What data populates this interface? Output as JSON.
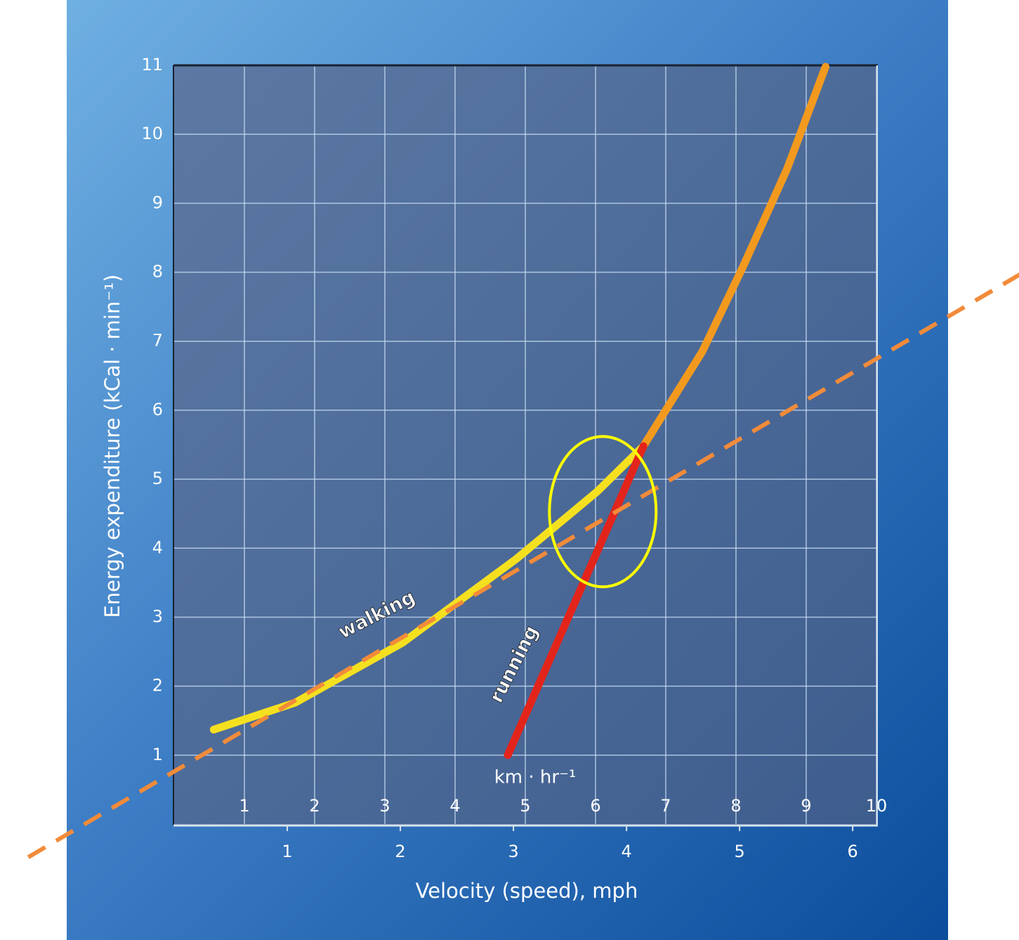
{
  "chart_data": {
    "type": "line",
    "x_label": "Velocity (speed), mph",
    "y_label": "Energy expenditure (kCal · min⁻¹)",
    "x2_label": "km · hr⁻¹",
    "xlim": [
      0,
      6.21
    ],
    "xticks": [
      1,
      2,
      3,
      4,
      5,
      6
    ],
    "x2lim": [
      0,
      10
    ],
    "x2ticks": [
      1,
      2,
      3,
      4,
      5,
      6,
      7,
      8,
      9,
      10
    ],
    "ylim": [
      0,
      11
    ],
    "yticks": [
      1,
      2,
      3,
      4,
      5,
      6,
      7,
      8,
      9,
      10,
      11
    ],
    "grid": true,
    "series": [
      {
        "name": "walking",
        "color": "#f5e020",
        "x": [
          0.35,
          1.07,
          2.02,
          3.03,
          3.74,
          4.15
        ],
        "values": [
          1.37,
          1.76,
          2.63,
          3.85,
          4.82,
          5.48
        ]
      },
      {
        "name": "running",
        "color": "#e3241b",
        "x": [
          2.95,
          4.15
        ],
        "values": [
          1.0,
          5.48
        ]
      },
      {
        "color": "#f39a1e",
        "x": [
          4.15,
          4.67,
          5.03,
          5.42,
          5.76
        ],
        "values": [
          5.48,
          6.85,
          8.08,
          9.5,
          10.98
        ]
      }
    ],
    "annotation_line": {
      "color": "#f28b3a",
      "x": [
        -1.29,
        7.48
      ],
      "values": [
        -0.48,
        7.97
      ]
    },
    "highlight": {
      "color": "#ffff00",
      "x": 3.79,
      "y": 4.53
    }
  }
}
